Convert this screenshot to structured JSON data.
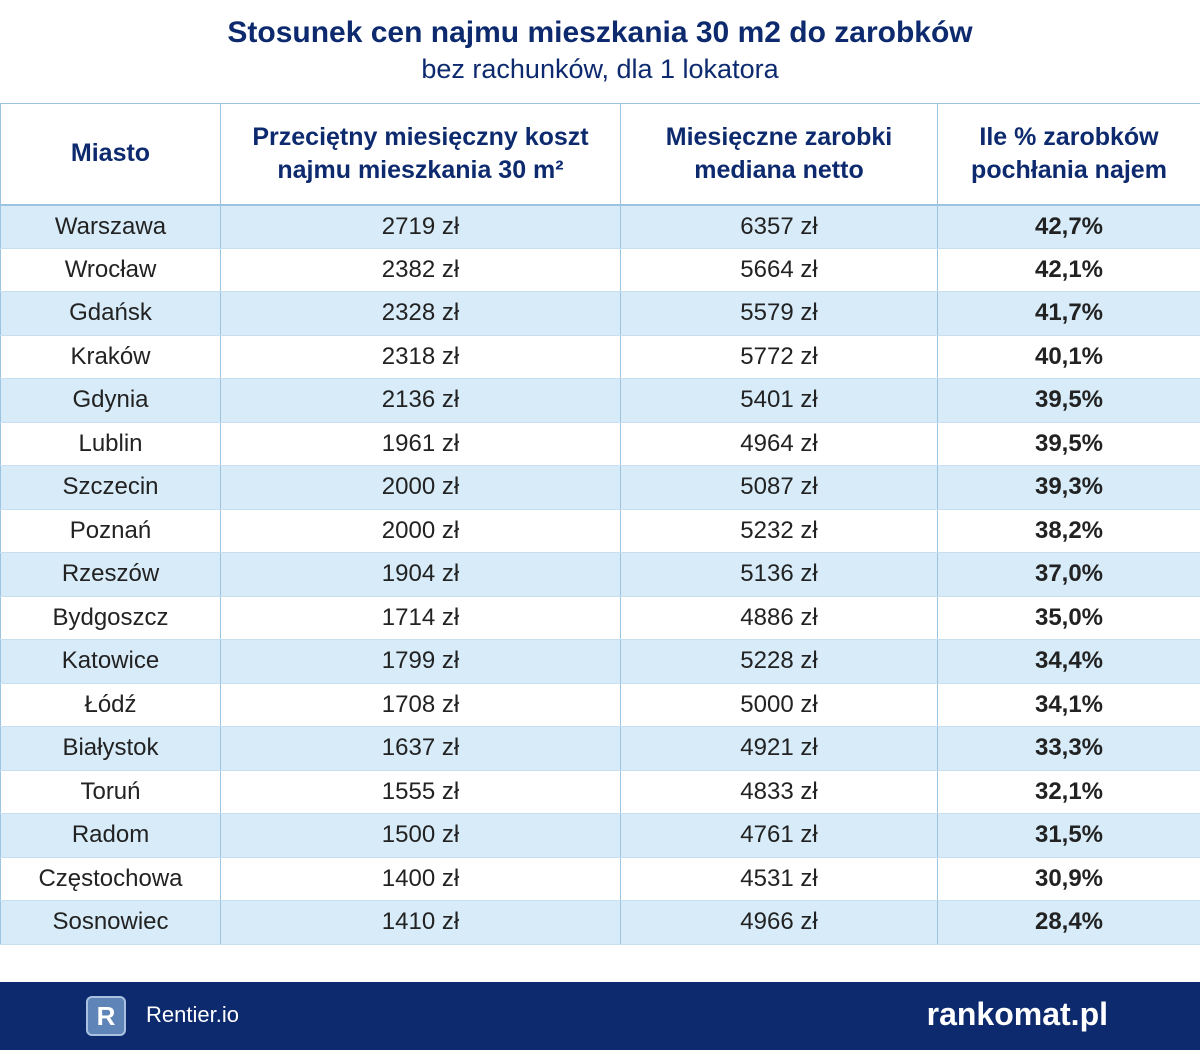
{
  "header": {
    "title": "Stosunek cen najmu mieszkania 30 m2 do zarobków",
    "subtitle": "bez rachunków, dla 1 lokatora"
  },
  "table": {
    "columns": [
      "Miasto",
      "Przeciętny miesięczny koszt najmu mieszkania 30 m²",
      "Miesięczne zarobki mediana netto",
      "Ile % zarobków pochłania najem"
    ],
    "rows": [
      [
        "Warszawa",
        "2719 zł",
        "6357 zł",
        "42,7%"
      ],
      [
        "Wrocław",
        "2382 zł",
        "5664 zł",
        "42,1%"
      ],
      [
        "Gdańsk",
        "2328 zł",
        "5579 zł",
        "41,7%"
      ],
      [
        "Kraków",
        "2318 zł",
        "5772 zł",
        "40,1%"
      ],
      [
        "Gdynia",
        "2136 zł",
        "5401 zł",
        "39,5%"
      ],
      [
        "Lublin",
        "1961 zł",
        "4964 zł",
        "39,5%"
      ],
      [
        "Szczecin",
        "2000 zł",
        "5087 zł",
        "39,3%"
      ],
      [
        "Poznań",
        "2000 zł",
        "5232 zł",
        "38,2%"
      ],
      [
        "Rzeszów",
        "1904 zł",
        "5136 zł",
        "37,0%"
      ],
      [
        "Bydgoszcz",
        "1714 zł",
        "4886 zł",
        "35,0%"
      ],
      [
        "Katowice",
        "1799 zł",
        "5228 zł",
        "34,4%"
      ],
      [
        "Łódź",
        "1708 zł",
        "5000 zł",
        "34,1%"
      ],
      [
        "Białystok",
        "1637 zł",
        "4921 zł",
        "33,3%"
      ],
      [
        "Toruń",
        "1555 zł",
        "4833 zł",
        "32,1%"
      ],
      [
        "Radom",
        "1500 zł",
        "4761 zł",
        "31,5%"
      ],
      [
        "Częstochowa",
        "1400 zł",
        "4531 zł",
        "30,9%"
      ],
      [
        "Sosnowiec",
        "1410 zł",
        "4966 zł",
        "28,4%"
      ]
    ]
  },
  "footer": {
    "logo_letter": "R",
    "brand_left": "Rentier.io",
    "brand_right": "rankomat.pl"
  }
}
